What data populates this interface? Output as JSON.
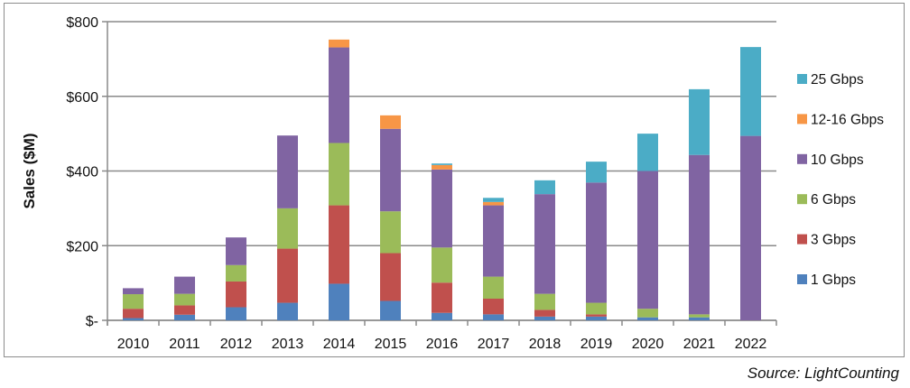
{
  "chart_data": {
    "type": "bar",
    "stacked": true,
    "title": "",
    "xlabel": "",
    "ylabel": "Sales ($M)",
    "ylim": [
      0,
      800
    ],
    "yticks": [
      0,
      200,
      400,
      600,
      800
    ],
    "ytick_labels": [
      "$-",
      "$200",
      "$400",
      "$600",
      "$800"
    ],
    "grid": true,
    "legend_position": "right",
    "categories": [
      "2010",
      "2011",
      "2012",
      "2013",
      "2014",
      "2015",
      "2016",
      "2017",
      "2018",
      "2019",
      "2020",
      "2021",
      "2022"
    ],
    "series": [
      {
        "name": "1  Gbps",
        "color": "#4F81BD",
        "values": [
          6,
          15,
          35,
          47,
          98,
          52,
          20,
          16,
          10,
          10,
          8,
          8,
          0
        ]
      },
      {
        "name": "3 Gbps",
        "color": "#C0504D",
        "values": [
          25,
          25,
          69,
          145,
          210,
          128,
          81,
          42,
          18,
          6,
          0,
          0,
          0
        ]
      },
      {
        "name": "6 Gbps",
        "color": "#9BBB59",
        "values": [
          39,
          31,
          44,
          108,
          167,
          112,
          94,
          59,
          43,
          31,
          23,
          8,
          0
        ]
      },
      {
        "name": "10 Gbps",
        "color": "#8064A2",
        "values": [
          16,
          46,
          74,
          195,
          256,
          221,
          209,
          191,
          267,
          322,
          369,
          427,
          494
        ]
      },
      {
        "name": "12-16 Gbps",
        "color": "#F79646",
        "values": [
          0,
          0,
          0,
          0,
          21,
          36,
          12,
          9,
          0,
          0,
          0,
          0,
          0
        ]
      },
      {
        "name": "25 Gbps",
        "color": "#4BACC6",
        "values": [
          0,
          0,
          0,
          0,
          0,
          0,
          4,
          11,
          37,
          56,
          100,
          176,
          238
        ]
      }
    ]
  },
  "source": "Source: LightCounting"
}
